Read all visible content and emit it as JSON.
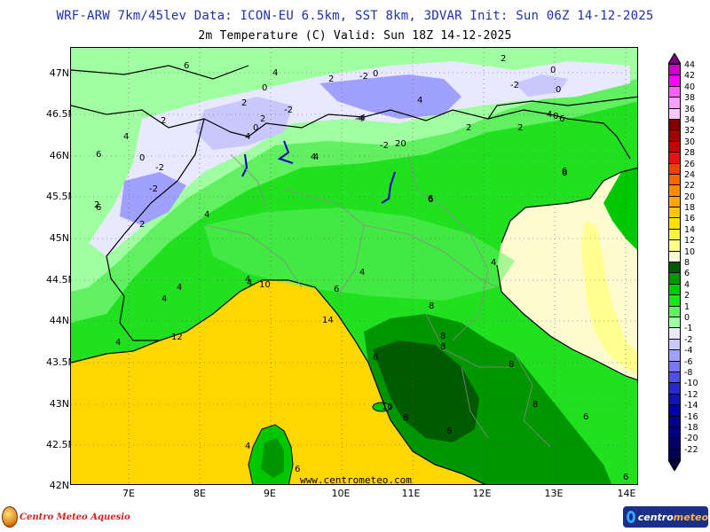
{
  "header": {
    "title_line1": "WRF-ARW 7km/45lev  Data: ICON-EU 6.5km, SST 8km, 3DVAR  Init: Sun 06Z 14-12-2025",
    "title_line2": "2m Temperature (C)  Valid: Sun 18Z 14-12-2025"
  },
  "axes": {
    "latitudes": [
      "47N",
      "46.5N",
      "46N",
      "45.5N",
      "45N",
      "44.5N",
      "44N",
      "43.5N",
      "43N",
      "42.5N",
      "42N"
    ],
    "longitudes": [
      "7E",
      "8E",
      "9E",
      "10E",
      "11E",
      "12E",
      "13E",
      "14E"
    ]
  },
  "legend": {
    "labels": [
      "44",
      "42",
      "40",
      "38",
      "36",
      "34",
      "32",
      "30",
      "28",
      "26",
      "24",
      "22",
      "20",
      "18",
      "16",
      "14",
      "12",
      "10",
      "8",
      "6",
      "4",
      "2",
      "1",
      "0",
      "-1",
      "-2",
      "-4",
      "-6",
      "-8",
      "-10",
      "-12",
      "-14",
      "-16",
      "-18",
      "-20",
      "-22"
    ],
    "colors": [
      "#c800c8",
      "#ff00ff",
      "#ff60ff",
      "#ffa0ff",
      "#ffc8ff",
      "#800000",
      "#a00000",
      "#c80000",
      "#e81010",
      "#ff3c00",
      "#ff6400",
      "#ff8c00",
      "#ffa800",
      "#ffc800",
      "#ffe000",
      "#fff050",
      "#ffff90",
      "#fffad0",
      "#005a00",
      "#009600",
      "#00c800",
      "#20e020",
      "#60f060",
      "#a0ffa0",
      "#e8e8ff",
      "#c8c8ff",
      "#a0a0ff",
      "#7878f0",
      "#5050e0",
      "#2828d0",
      "#1414b4",
      "#0000a0",
      "#00008c",
      "#000078",
      "#000064",
      "#000050"
    ],
    "top_cap_color": "#780078",
    "bottom_cap_color": "#00003c"
  },
  "contour_labels": [
    "6",
    "4",
    "0",
    "-2",
    "0",
    "2",
    "-2",
    "0",
    "2",
    "0",
    "4",
    "6",
    "2",
    "-2",
    "-4",
    "-2",
    "0",
    "2",
    "4",
    "2",
    "2",
    "6",
    "4",
    "0",
    "4",
    "6",
    "-2",
    "-4",
    "2",
    "20",
    "4",
    "6",
    "2",
    "0",
    "-2",
    "4",
    "6",
    "2",
    "4",
    "4",
    "4",
    "4",
    "6",
    "10",
    "6",
    "4",
    "8",
    "4",
    "14",
    "4",
    "12",
    "6",
    "8",
    "8",
    "10",
    "8",
    "6",
    "6",
    "6",
    "8",
    "8",
    "4",
    "6",
    "6",
    "4"
  ],
  "watermark": "www.centrometeo.com",
  "footer": {
    "left_brand": "Centro Meteo Aquesio",
    "right_brand_a": "centro",
    "right_brand_b": "meteo"
  },
  "colors": {
    "sea": "#ffd700",
    "adriatic": "#fffad0",
    "land_main": "#20e020",
    "land_mid": "#00c800",
    "land_dark": "#009600",
    "alps_cold": "#a0ffa0",
    "snow": "#e8e8ff",
    "cold_blue": "#a0a0ff",
    "borders": "#000000",
    "regions": "#8a8a8a",
    "lakes": "#0000c0"
  }
}
